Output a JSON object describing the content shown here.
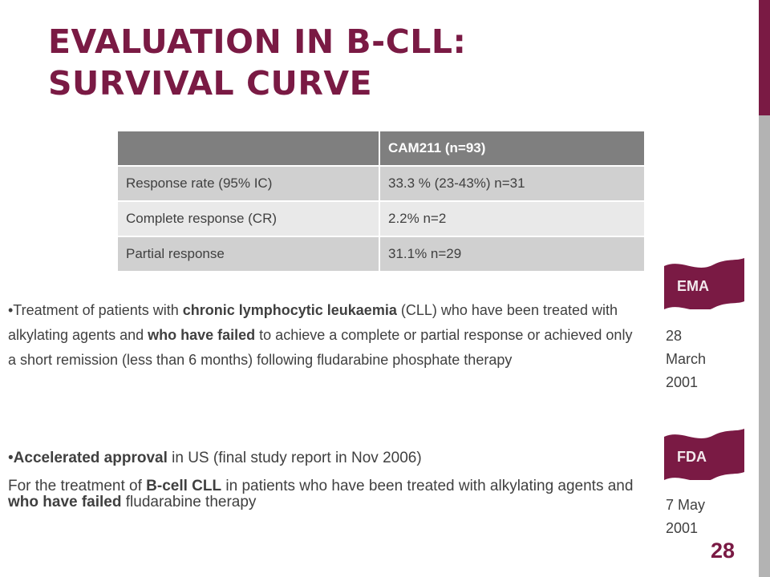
{
  "slide": {
    "title_line1": "EVALUATION IN B-CLL:",
    "title_line2": "SURVIVAL CURVE",
    "page_number": "28"
  },
  "table": {
    "headers": [
      "",
      "CAM211 (n=93)"
    ],
    "rows": [
      [
        "Response rate (95% IC)",
        "33.3 % (23-43%) n=31"
      ],
      [
        "Complete response (CR)",
        "2.2%  n=2"
      ],
      [
        "Partial response",
        "31.1% n=29"
      ]
    ]
  },
  "indication": {
    "p1_part1": "•Treatment of patients with ",
    "p1_bold1": "chronic lymphocytic leukaemia",
    "p1_part2": " (CLL) who have been treated with alkylating agents and ",
    "p1_bold2": "who have failed",
    "p1_part3": " to achieve a complete or partial response or achieved only a short remission (less than 6 months) following fludarabine phosphate therapy",
    "p2_bullet": "•",
    "p2_bold": "Accelerated approval",
    "p2_rest": " in US (final study report in Nov 2006)",
    "p3_part1": "For the treatment of ",
    "p3_bold1": "B-cell CLL",
    "p3_part2": " in patients who have been treated with alkylating agents and ",
    "p3_bold2": "who have failed",
    "p3_part3": " fludarabine therapy"
  },
  "approvals": {
    "ema": {
      "agency": "EMA",
      "date_line1": "28",
      "date_line2": "March",
      "date_line3": "2001"
    },
    "fda": {
      "agency": "FDA",
      "date_line1": "7 May",
      "date_line2": "2001"
    }
  },
  "colors": {
    "accent": "#7a1a44",
    "side_bar": "#b3b3b3",
    "table_header": "#7f7f7f",
    "table_row_dark": "#d0d0d0",
    "table_row_light": "#e9e9e9",
    "body_text": "#404040"
  },
  "icons": {
    "agency_banner": "wavy-flag-banner"
  }
}
